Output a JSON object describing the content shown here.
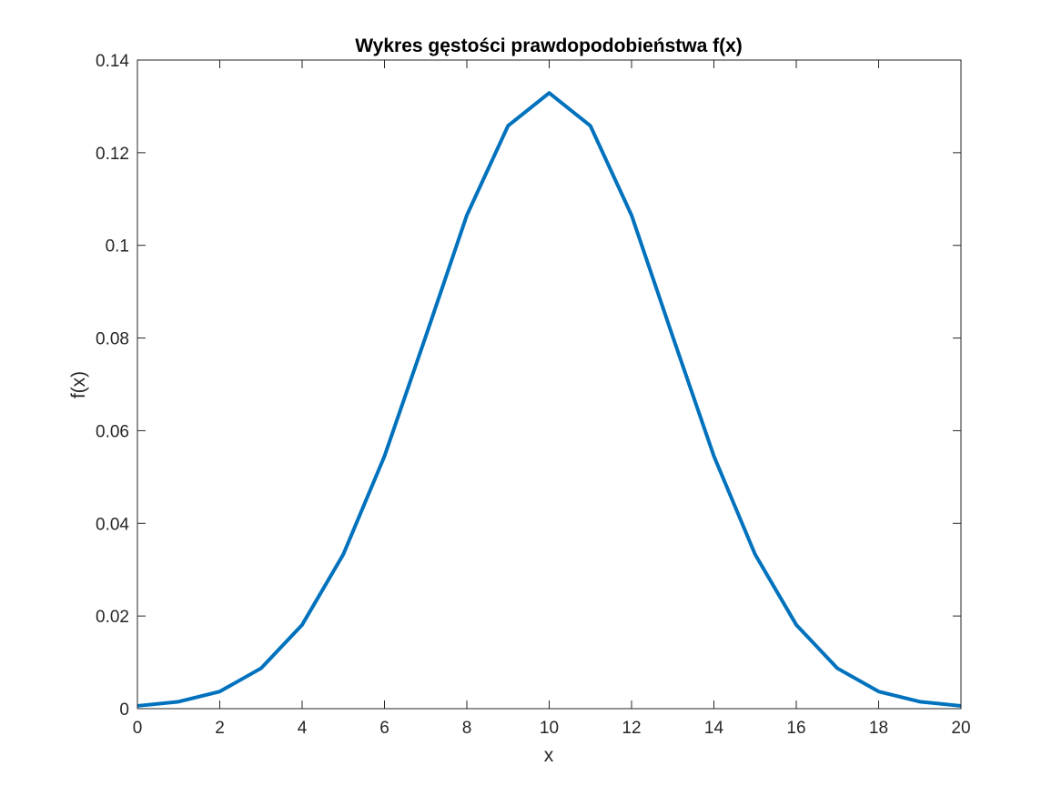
{
  "chart_data": {
    "type": "line",
    "title": "Wykres gęstości prawdopodobieństwa f(x)",
    "xlabel": "x",
    "ylabel": "f(x)",
    "xlim": [
      0,
      20
    ],
    "ylim": [
      0,
      0.14
    ],
    "xticks": [
      0,
      2,
      4,
      6,
      8,
      10,
      12,
      14,
      16,
      18,
      20
    ],
    "xtick_labels": [
      "0",
      "2",
      "4",
      "6",
      "8",
      "10",
      "12",
      "14",
      "16",
      "18",
      "20"
    ],
    "yticks": [
      0,
      0.02,
      0.04,
      0.06,
      0.08,
      0.1,
      0.12,
      0.14
    ],
    "ytick_labels": [
      "0",
      "0.02",
      "0.04",
      "0.06",
      "0.08",
      "0.1",
      "0.12",
      "0.14"
    ],
    "grid": false,
    "legend": "none",
    "series": [
      {
        "color": "#0072BD",
        "x": [
          0,
          1,
          2,
          3,
          4,
          5,
          6,
          7,
          8,
          9,
          10,
          11,
          12,
          13,
          14,
          15,
          16,
          17,
          18,
          19,
          20
        ],
        "y": [
          0.0006,
          0.0015,
          0.0037,
          0.0087,
          0.0181,
          0.0333,
          0.0545,
          0.0803,
          0.1065,
          0.1258,
          0.1329,
          0.1258,
          0.1065,
          0.0803,
          0.0545,
          0.0333,
          0.0181,
          0.0087,
          0.0037,
          0.0015,
          0.0006
        ]
      }
    ]
  }
}
